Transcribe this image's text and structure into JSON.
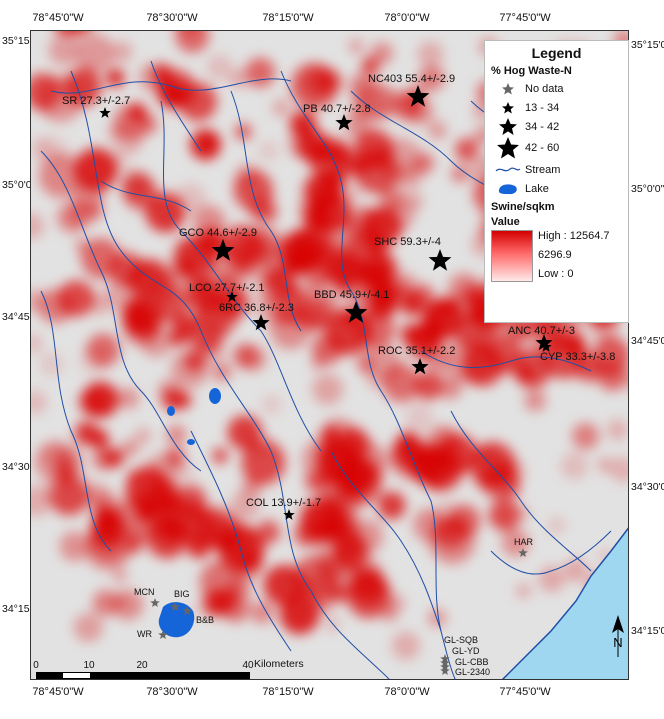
{
  "map": {
    "lon_ticks": [
      "78°45'0\"W",
      "78°30'0\"W",
      "78°15'0\"W",
      "78°0'0\"W",
      "77°45'0\"W"
    ],
    "lat_ticks": [
      "35°15'0\"N",
      "35°0'0\"N",
      "34°45'0\"N",
      "34°30'0\"N",
      "34°15'0\"N"
    ],
    "colors": {
      "background": "#e2e2e2",
      "density": "#d80000",
      "stream": "#1f4fa6",
      "lake": "#1565d8",
      "ocean": "#9fd6f0"
    },
    "sites": [
      {
        "id": "SR",
        "label": "SR 27.3+/-2.7",
        "class": "13 - 34"
      },
      {
        "id": "NC403",
        "label": "NC403 55.4+/-2.9",
        "class": "42 - 60"
      },
      {
        "id": "PB",
        "label": "PB 40.7+/-2.8",
        "class": "34 - 42"
      },
      {
        "id": "GCO",
        "label": "GCO 44.6+/-2.9",
        "class": "42 - 60"
      },
      {
        "id": "SHC",
        "label": "SHC 59.3+/-4",
        "class": "42 - 60"
      },
      {
        "id": "LCO",
        "label": "LCO 27.7+/-2.1",
        "class": "13 - 34"
      },
      {
        "id": "6RC",
        "label": "6RC 36.8+/-2.3",
        "class": "34 - 42"
      },
      {
        "id": "BBD",
        "label": "BBD 45.9+/-4.1",
        "class": "42 - 60"
      },
      {
        "id": "ANC",
        "label": "ANC 40.7+/-3",
        "class": "34 - 42"
      },
      {
        "id": "CYP",
        "label": "CYP 33.3+/-3.8",
        "class": "13 - 34"
      },
      {
        "id": "ROC",
        "label": "ROC 35.1+/-2.2",
        "class": "34 - 42"
      },
      {
        "id": "COL",
        "label": "COL 13.9+/-1.7",
        "class": "13 - 34"
      },
      {
        "id": "HAR",
        "label": "HAR",
        "class": "No data"
      },
      {
        "id": "MCN",
        "label": "MCN",
        "class": "No data"
      },
      {
        "id": "BIG",
        "label": "BIG",
        "class": "No data"
      },
      {
        "id": "B&B",
        "label": "B&B",
        "class": "No data"
      },
      {
        "id": "WR",
        "label": "WR",
        "class": "No data"
      },
      {
        "id": "GL-SQB",
        "label": "GL-SQB",
        "class": "No data"
      },
      {
        "id": "GL-YD",
        "label": "GL-YD",
        "class": "No data"
      },
      {
        "id": "GL-CBB",
        "label": "GL-CBB",
        "class": "No data"
      },
      {
        "id": "GL-2340",
        "label": "GL-2340",
        "class": "No data"
      }
    ]
  },
  "legend": {
    "title": "Legend",
    "hog_header": "% Hog Waste-N",
    "classes": [
      "No data",
      "13 - 34",
      "34 - 42",
      "42 - 60"
    ],
    "stream": "Stream",
    "lake": "Lake",
    "swine_header": "Swine/sqkm",
    "value_header": "Value",
    "high": "High : 12564.7",
    "mid": "6296.9",
    "low": "Low : 0"
  },
  "scalebar": {
    "ticks": [
      "0",
      "10",
      "20",
      "40"
    ],
    "unit": "Kilometers"
  }
}
